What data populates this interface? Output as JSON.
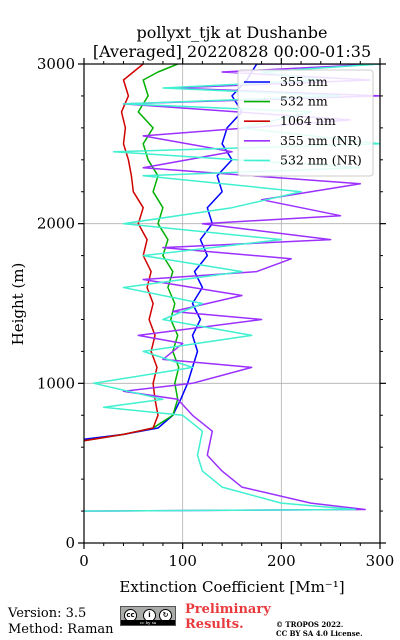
{
  "chart_data": {
    "type": "line",
    "title": "pollyxt_tjk at Dushanbe",
    "subtitle": "[Averaged] 20220828 00:00-01:35",
    "xlabel": "Extinction Coefficient [Mm⁻¹]",
    "ylabel": "Height (m)",
    "xlim": [
      0,
      300
    ],
    "ylim": [
      0,
      3000
    ],
    "xticks": [
      0,
      100,
      200,
      300
    ],
    "yticks": [
      0,
      1000,
      2000,
      3000
    ],
    "grid": true,
    "legend_position": "top-right",
    "series": [
      {
        "name": "355 nm",
        "color": "#0000ff",
        "x": [
          0,
          40,
          75,
          90,
          98,
          105,
          110,
          115,
          110,
          118,
          110,
          120,
          112,
          125,
          118,
          130,
          125,
          140,
          135,
          150,
          140,
          145,
          160,
          150,
          165,
          170,
          175,
          180
        ],
        "y": [
          650,
          680,
          720,
          800,
          900,
          1000,
          1100,
          1200,
          1300,
          1400,
          1500,
          1600,
          1700,
          1800,
          1900,
          2000,
          2100,
          2200,
          2300,
          2400,
          2500,
          2600,
          2700,
          2800,
          2900,
          2950,
          3000,
          3000
        ]
      },
      {
        "name": "532 nm",
        "color": "#00b000",
        "x": [
          0,
          40,
          70,
          90,
          95,
          92,
          96,
          90,
          95,
          88,
          92,
          85,
          90,
          80,
          85,
          75,
          80,
          70,
          75,
          65,
          60,
          70,
          55,
          65,
          60,
          75,
          95
        ],
        "y": [
          640,
          680,
          720,
          800,
          900,
          1000,
          1100,
          1200,
          1300,
          1400,
          1500,
          1600,
          1700,
          1800,
          1900,
          2000,
          2100,
          2200,
          2300,
          2400,
          2500,
          2600,
          2700,
          2800,
          2900,
          2950,
          3000
        ]
      },
      {
        "name": "1064 nm",
        "color": "#d00000",
        "x": [
          0,
          40,
          70,
          75,
          72,
          70,
          74,
          68,
          72,
          66,
          70,
          64,
          68,
          60,
          64,
          55,
          60,
          50,
          48,
          45,
          40,
          42,
          38,
          45,
          40,
          50,
          60
        ],
        "y": [
          640,
          680,
          720,
          800,
          900,
          1000,
          1100,
          1200,
          1300,
          1400,
          1500,
          1600,
          1700,
          1800,
          1900,
          2000,
          2100,
          2200,
          2300,
          2400,
          2500,
          2600,
          2700,
          2800,
          2900,
          2950,
          3000
        ]
      },
      {
        "name": "355 nm (NR)",
        "color": "#9b30ff",
        "x": [
          0,
          285,
          230,
          160,
          140,
          125,
          130,
          110,
          95,
          40,
          110,
          170,
          80,
          100,
          55,
          180,
          90,
          160,
          60,
          175,
          210,
          80,
          250,
          120,
          260,
          180,
          280,
          60,
          150,
          60,
          270,
          40,
          300,
          90,
          290,
          140,
          300,
          180
        ],
        "y": [
          200,
          210,
          250,
          350,
          450,
          550,
          700,
          800,
          900,
          950,
          1000,
          1100,
          1150,
          1250,
          1300,
          1400,
          1450,
          1550,
          1650,
          1700,
          1780,
          1850,
          1900,
          2000,
          2050,
          2150,
          2250,
          2350,
          2450,
          2550,
          2650,
          2750,
          2800,
          2850,
          2900,
          2950,
          3000,
          3000
        ]
      },
      {
        "name": "532 nm (NR)",
        "color": "#40f0d0",
        "x": [
          0,
          275,
          200,
          140,
          120,
          115,
          120,
          100,
          20,
          80,
          10,
          110,
          60,
          170,
          80,
          120,
          40,
          160,
          60,
          200,
          40,
          150,
          220,
          60,
          280,
          30,
          300,
          160,
          230,
          40,
          260,
          80,
          240,
          180,
          300
        ],
        "y": [
          200,
          210,
          250,
          350,
          450,
          550,
          700,
          800,
          850,
          900,
          1000,
          1100,
          1200,
          1300,
          1400,
          1500,
          1600,
          1700,
          1800,
          1900,
          2000,
          2100,
          2200,
          2300,
          2350,
          2450,
          2500,
          2600,
          2700,
          2750,
          2800,
          2850,
          2900,
          2950,
          3000
        ]
      }
    ]
  },
  "footer": {
    "version_line": "Version: 3.5",
    "method_line": "Method: Raman",
    "preliminary_line1": "Preliminary",
    "preliminary_line2": "Results.",
    "license_line1": "© TROPOS 2022.",
    "license_line2": "CC BY SA 4.0 License.",
    "badge_text": "cc by sa"
  },
  "colors": {
    "preliminary_text": "#e8393d",
    "badge_background": "#a9aba8"
  },
  "icons": [
    "creative-commons-icon",
    "attribution-icon",
    "share-alike-icon"
  ]
}
